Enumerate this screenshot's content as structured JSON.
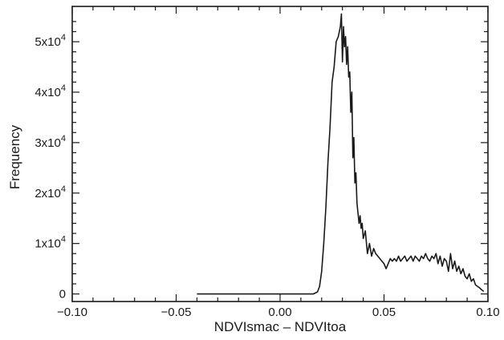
{
  "chart_data": {
    "type": "line",
    "title": "",
    "xlabel": "NDVIsmac – NDVItoa",
    "ylabel": "Frequency",
    "xlim": [
      -0.1,
      0.1
    ],
    "ylim": [
      -1500,
      57000
    ],
    "grid": false,
    "x_ticks": [
      {
        "value": -0.1,
        "label": "−0.10"
      },
      {
        "value": -0.05,
        "label": "−0.05"
      },
      {
        "value": 0.0,
        "label": "0.00"
      },
      {
        "value": 0.05,
        "label": "0.05"
      },
      {
        "value": 0.1,
        "label": "0.10"
      }
    ],
    "y_ticks": [
      {
        "value": 0,
        "base": "0",
        "exp": ""
      },
      {
        "value": 10000,
        "base": "1x10",
        "exp": "4"
      },
      {
        "value": 20000,
        "base": "2x10",
        "exp": "4"
      },
      {
        "value": 30000,
        "base": "3x10",
        "exp": "4"
      },
      {
        "value": 40000,
        "base": "4x10",
        "exp": "4"
      },
      {
        "value": 50000,
        "base": "5x10",
        "exp": "4"
      }
    ],
    "series": [
      {
        "color": "#1a1a1a",
        "x": [
          -0.04,
          0.0,
          0.016,
          0.018,
          0.019,
          0.02,
          0.021,
          0.022,
          0.023,
          0.024,
          0.025,
          0.026,
          0.027,
          0.028,
          0.029,
          0.0295,
          0.03,
          0.0305,
          0.031,
          0.0315,
          0.032,
          0.0325,
          0.033,
          0.0335,
          0.034,
          0.0345,
          0.035,
          0.0355,
          0.036,
          0.0365,
          0.037,
          0.0375,
          0.038,
          0.0385,
          0.039,
          0.0395,
          0.04,
          0.041,
          0.042,
          0.043,
          0.044,
          0.045,
          0.046,
          0.047,
          0.048,
          0.049,
          0.05,
          0.051,
          0.052,
          0.053,
          0.054,
          0.055,
          0.056,
          0.057,
          0.058,
          0.059,
          0.06,
          0.061,
          0.062,
          0.063,
          0.064,
          0.065,
          0.066,
          0.067,
          0.068,
          0.069,
          0.07,
          0.071,
          0.072,
          0.073,
          0.074,
          0.075,
          0.076,
          0.077,
          0.078,
          0.079,
          0.08,
          0.081,
          0.082,
          0.083,
          0.084,
          0.085,
          0.086,
          0.087,
          0.088,
          0.089,
          0.09,
          0.091,
          0.092,
          0.093,
          0.094,
          0.095,
          0.096,
          0.097,
          0.098
        ],
        "values": [
          0,
          0,
          0,
          400,
          1500,
          4500,
          10000,
          17000,
          26000,
          33000,
          42000,
          45000,
          50000,
          51000,
          53000,
          55500,
          46000,
          53000,
          49000,
          51000,
          45500,
          49000,
          43000,
          44000,
          36000,
          40000,
          27000,
          31000,
          22000,
          24000,
          18000,
          16000,
          14000,
          15500,
          13000,
          14000,
          11000,
          12500,
          8000,
          10000,
          7500,
          9000,
          8000,
          7500,
          7000,
          6500,
          6000,
          5000,
          6000,
          7000,
          6500,
          7000,
          6500,
          7500,
          6500,
          7000,
          7500,
          6500,
          7000,
          7500,
          6500,
          7500,
          7000,
          6500,
          7500,
          7000,
          8000,
          7000,
          6500,
          7500,
          7000,
          8000,
          6000,
          7500,
          5500,
          7000,
          6500,
          4500,
          8000,
          5000,
          6500,
          4500,
          5500,
          4000,
          5000,
          3500,
          3000,
          4000,
          2500,
          3000,
          1800,
          1500,
          1200,
          800,
          500
        ]
      }
    ]
  }
}
